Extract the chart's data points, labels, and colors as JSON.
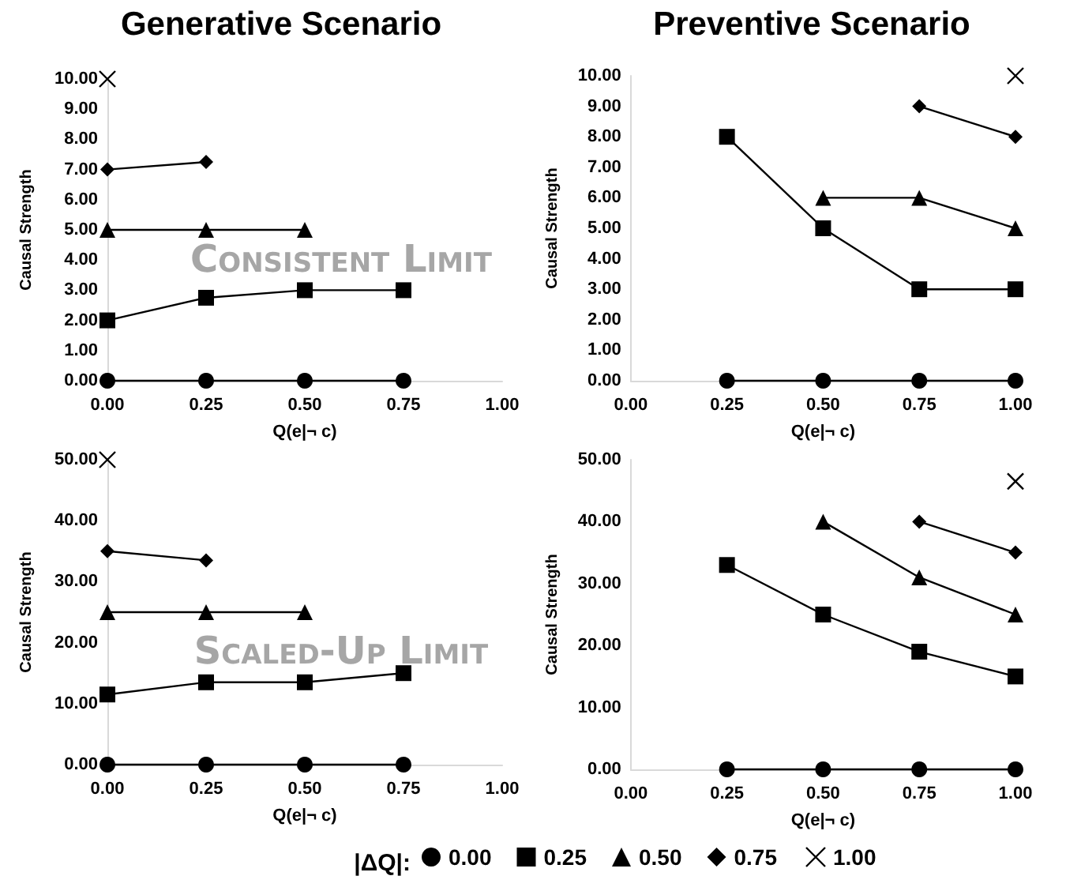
{
  "chart_data": [
    {
      "type": "line",
      "title": "Generative Scenario",
      "xlabel": "Q(e|¬ c)",
      "ylabel": "Causal Strength",
      "annotations": [
        "Consistent Limit"
      ],
      "legend_title": "|ΔQ|:",
      "legend": "bottom",
      "xlim": [
        0,
        1
      ],
      "xticks": [
        {
          "value": 0,
          "label": "0.00"
        },
        {
          "value": 0.25,
          "label": "0.25"
        },
        {
          "value": 0.5,
          "label": "0.50"
        },
        {
          "value": 0.75,
          "label": "0.75"
        },
        {
          "value": 1,
          "label": "1.00"
        }
      ],
      "ylim": [
        0,
        10
      ],
      "yticks": [
        {
          "value": 0,
          "label": "0.00"
        },
        {
          "value": 1,
          "label": "1.00"
        },
        {
          "value": 2,
          "label": "2.00"
        },
        {
          "value": 3,
          "label": "3.00"
        },
        {
          "value": 4,
          "label": "4.00"
        },
        {
          "value": 5,
          "label": "5.00"
        },
        {
          "value": 6,
          "label": "6.00"
        },
        {
          "value": 7,
          "label": "7.00"
        },
        {
          "value": 8,
          "label": "8.00"
        },
        {
          "value": 9,
          "label": "9.00"
        },
        {
          "value": 10,
          "label": "10.00"
        }
      ],
      "grid": false,
      "line_style": "solid",
      "series": [
        {
          "name": "0.00",
          "color": "#000000",
          "marker": "circle",
          "x": [
            0,
            0.25,
            0.5,
            0.75
          ],
          "values": [
            0,
            0,
            0,
            0
          ]
        },
        {
          "name": "0.25",
          "color": "#000000",
          "marker": "square",
          "x": [
            0,
            0.25,
            0.5,
            0.75
          ],
          "values": [
            2,
            2.75,
            3,
            3
          ]
        },
        {
          "name": "0.50",
          "color": "#000000",
          "marker": "triangle",
          "x": [
            0,
            0.25,
            0.5
          ],
          "values": [
            5,
            5,
            5
          ]
        },
        {
          "name": "0.75",
          "color": "#000000",
          "marker": "diamond",
          "x": [
            0,
            0.25
          ],
          "values": [
            7,
            7.25
          ]
        },
        {
          "name": "1.00",
          "color": "#000000",
          "marker": "cross",
          "x": [
            0
          ],
          "values": [
            10
          ]
        }
      ]
    },
    {
      "type": "line",
      "title": "Preventive Scenario",
      "xlabel": "Q(e|¬ c)",
      "ylabel": "Causal Strength",
      "xlim": [
        0,
        1
      ],
      "xticks": [
        {
          "value": 0,
          "label": "0.00"
        },
        {
          "value": 0.25,
          "label": "0.25"
        },
        {
          "value": 0.5,
          "label": "0.50"
        },
        {
          "value": 0.75,
          "label": "0.75"
        },
        {
          "value": 1,
          "label": "1.00"
        }
      ],
      "ylim": [
        0,
        10
      ],
      "yticks": [
        {
          "value": 0,
          "label": "0.00"
        },
        {
          "value": 1,
          "label": "1.00"
        },
        {
          "value": 2,
          "label": "2.00"
        },
        {
          "value": 3,
          "label": "3.00"
        },
        {
          "value": 4,
          "label": "4.00"
        },
        {
          "value": 5,
          "label": "5.00"
        },
        {
          "value": 6,
          "label": "6.00"
        },
        {
          "value": 7,
          "label": "7.00"
        },
        {
          "value": 8,
          "label": "8.00"
        },
        {
          "value": 9,
          "label": "9.00"
        },
        {
          "value": 10,
          "label": "10.00"
        }
      ],
      "grid": false,
      "line_style": "solid",
      "series": [
        {
          "color": "#000000",
          "marker": "circle",
          "x": [
            0.25,
            0.5,
            0.75,
            1
          ],
          "values": [
            0,
            0,
            0,
            0
          ]
        },
        {
          "color": "#000000",
          "marker": "square",
          "x": [
            0.25,
            0.5,
            0.75,
            1
          ],
          "values": [
            8,
            5,
            3,
            3
          ]
        },
        {
          "color": "#000000",
          "marker": "triangle",
          "x": [
            0.5,
            0.75,
            1
          ],
          "values": [
            6,
            6,
            5
          ]
        },
        {
          "color": "#000000",
          "marker": "diamond",
          "x": [
            0.75,
            1
          ],
          "values": [
            9,
            8
          ]
        },
        {
          "color": "#000000",
          "marker": "cross",
          "x": [
            1
          ],
          "values": [
            10
          ]
        }
      ]
    },
    {
      "type": "line",
      "xlabel": "Q(e|¬ c)",
      "ylabel": "Causal Strength",
      "annotations": [
        "Scaled-Up Limit"
      ],
      "xlim": [
        0,
        1
      ],
      "xticks": [
        {
          "value": 0,
          "label": "0.00"
        },
        {
          "value": 0.25,
          "label": "0.25"
        },
        {
          "value": 0.5,
          "label": "0.50"
        },
        {
          "value": 0.75,
          "label": "0.75"
        },
        {
          "value": 1,
          "label": "1.00"
        }
      ],
      "ylim": [
        0,
        50
      ],
      "yticks": [
        {
          "value": 0,
          "label": "0.00"
        },
        {
          "value": 10,
          "label": "10.00"
        },
        {
          "value": 20,
          "label": "20.00"
        },
        {
          "value": 30,
          "label": "30.00"
        },
        {
          "value": 40,
          "label": "40.00"
        },
        {
          "value": 50,
          "label": "50.00"
        }
      ],
      "grid": false,
      "line_style": "solid",
      "series": [
        {
          "color": "#000000",
          "marker": "circle",
          "x": [
            0,
            0.25,
            0.5,
            0.75
          ],
          "values": [
            0,
            0,
            0,
            0
          ]
        },
        {
          "color": "#000000",
          "marker": "square",
          "x": [
            0,
            0.25,
            0.5,
            0.75
          ],
          "values": [
            11.5,
            13.5,
            13.5,
            15
          ]
        },
        {
          "color": "#000000",
          "marker": "triangle",
          "x": [
            0,
            0.25,
            0.5
          ],
          "values": [
            25,
            25,
            25
          ]
        },
        {
          "color": "#000000",
          "marker": "diamond",
          "x": [
            0,
            0.25
          ],
          "values": [
            35,
            33.5
          ]
        },
        {
          "color": "#000000",
          "marker": "cross",
          "x": [
            0
          ],
          "values": [
            50
          ]
        }
      ]
    },
    {
      "type": "line",
      "xlabel": "Q(e|¬ c)",
      "ylabel": "Causal Strength",
      "xlim": [
        0,
        1
      ],
      "xticks": [
        {
          "value": 0,
          "label": "0.00"
        },
        {
          "value": 0.25,
          "label": "0.25"
        },
        {
          "value": 0.5,
          "label": "0.50"
        },
        {
          "value": 0.75,
          "label": "0.75"
        },
        {
          "value": 1,
          "label": "1.00"
        }
      ],
      "ylim": [
        0,
        50
      ],
      "yticks": [
        {
          "value": 0,
          "label": "0.00"
        },
        {
          "value": 10,
          "label": "10.00"
        },
        {
          "value": 20,
          "label": "20.00"
        },
        {
          "value": 30,
          "label": "30.00"
        },
        {
          "value": 40,
          "label": "40.00"
        },
        {
          "value": 50,
          "label": "50.00"
        }
      ],
      "grid": false,
      "line_style": "solid",
      "series": [
        {
          "color": "#000000",
          "marker": "circle",
          "x": [
            0.25,
            0.5,
            0.75,
            1
          ],
          "values": [
            0,
            0,
            0,
            0
          ]
        },
        {
          "color": "#000000",
          "marker": "square",
          "x": [
            0.25,
            0.5,
            0.75,
            1
          ],
          "values": [
            33,
            25,
            19,
            15
          ]
        },
        {
          "color": "#000000",
          "marker": "triangle",
          "x": [
            0.5,
            0.75,
            1
          ],
          "values": [
            40,
            31,
            25
          ]
        },
        {
          "color": "#000000",
          "marker": "diamond",
          "x": [
            0.75,
            1
          ],
          "values": [
            40,
            35
          ]
        },
        {
          "color": "#000000",
          "marker": "cross",
          "x": [
            1
          ],
          "values": [
            46.5
          ]
        }
      ]
    }
  ]
}
